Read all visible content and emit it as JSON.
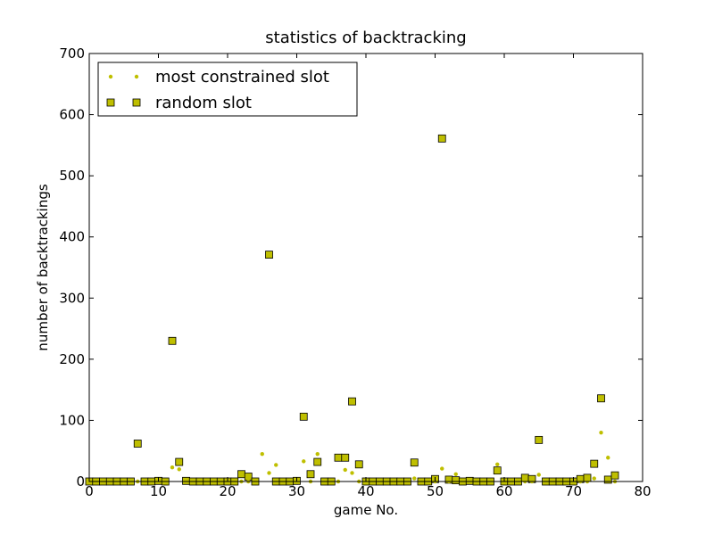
{
  "chart_data": {
    "type": "scatter",
    "title": "statistics of backtracking",
    "xlabel": "game No.",
    "ylabel": "number of backtrackings",
    "xlim": [
      0,
      80
    ],
    "ylim": [
      0,
      700
    ],
    "xticks": [
      "0",
      "10",
      "20",
      "30",
      "40",
      "50",
      "60",
      "70",
      "80"
    ],
    "yticks": [
      "0",
      "100",
      "200",
      "300",
      "400",
      "500",
      "600",
      "700"
    ],
    "grid": false,
    "legend_position": "top-left",
    "series": [
      {
        "name": "most constrained slot",
        "marker": "dot",
        "color": "#bfbf00",
        "points": [
          [
            0,
            0
          ],
          [
            1,
            0
          ],
          [
            2,
            0
          ],
          [
            3,
            0
          ],
          [
            4,
            0
          ],
          [
            5,
            0
          ],
          [
            6,
            0
          ],
          [
            7,
            0
          ],
          [
            8,
            0
          ],
          [
            9,
            0
          ],
          [
            10,
            0
          ],
          [
            11,
            0
          ],
          [
            12,
            23
          ],
          [
            13,
            20
          ],
          [
            14,
            0
          ],
          [
            15,
            0
          ],
          [
            16,
            0
          ],
          [
            17,
            0
          ],
          [
            18,
            0
          ],
          [
            19,
            0
          ],
          [
            20,
            0
          ],
          [
            21,
            0
          ],
          [
            22,
            0
          ],
          [
            23,
            0
          ],
          [
            24,
            0
          ],
          [
            25,
            45
          ],
          [
            26,
            14
          ],
          [
            27,
            27
          ],
          [
            28,
            0
          ],
          [
            29,
            0
          ],
          [
            30,
            0
          ],
          [
            31,
            33
          ],
          [
            32,
            0
          ],
          [
            33,
            45
          ],
          [
            34,
            0
          ],
          [
            35,
            0
          ],
          [
            36,
            0
          ],
          [
            37,
            19
          ],
          [
            38,
            14
          ],
          [
            39,
            0
          ],
          [
            40,
            0
          ],
          [
            41,
            0
          ],
          [
            42,
            0
          ],
          [
            43,
            0
          ],
          [
            44,
            0
          ],
          [
            45,
            0
          ],
          [
            46,
            0
          ],
          [
            47,
            5
          ],
          [
            48,
            0
          ],
          [
            49,
            0
          ],
          [
            50,
            0
          ],
          [
            51,
            21
          ],
          [
            52,
            0
          ],
          [
            53,
            12
          ],
          [
            54,
            0
          ],
          [
            55,
            0
          ],
          [
            56,
            0
          ],
          [
            57,
            0
          ],
          [
            58,
            0
          ],
          [
            59,
            28
          ],
          [
            60,
            0
          ],
          [
            61,
            0
          ],
          [
            62,
            0
          ],
          [
            63,
            0
          ],
          [
            64,
            0
          ],
          [
            65,
            11
          ],
          [
            66,
            0
          ],
          [
            67,
            0
          ],
          [
            68,
            0
          ],
          [
            69,
            0
          ],
          [
            70,
            0
          ],
          [
            71,
            0
          ],
          [
            72,
            0
          ],
          [
            73,
            5
          ],
          [
            74,
            80
          ],
          [
            75,
            39
          ],
          [
            76,
            0
          ]
        ]
      },
      {
        "name": "random slot",
        "marker": "square",
        "color": "#bfbf00",
        "points": [
          [
            0,
            0
          ],
          [
            1,
            0
          ],
          [
            2,
            0
          ],
          [
            3,
            0
          ],
          [
            4,
            0
          ],
          [
            5,
            0
          ],
          [
            6,
            0
          ],
          [
            7,
            62
          ],
          [
            8,
            0
          ],
          [
            9,
            0
          ],
          [
            10,
            1
          ],
          [
            11,
            0
          ],
          [
            12,
            230
          ],
          [
            13,
            32
          ],
          [
            14,
            1
          ],
          [
            15,
            0
          ],
          [
            16,
            0
          ],
          [
            17,
            0
          ],
          [
            18,
            0
          ],
          [
            19,
            0
          ],
          [
            20,
            0
          ],
          [
            21,
            0
          ],
          [
            22,
            12
          ],
          [
            23,
            8
          ],
          [
            24,
            0
          ],
          [
            26,
            371
          ],
          [
            27,
            0
          ],
          [
            28,
            0
          ],
          [
            29,
            0
          ],
          [
            30,
            1
          ],
          [
            31,
            106
          ],
          [
            32,
            12
          ],
          [
            33,
            32
          ],
          [
            34,
            0
          ],
          [
            35,
            0
          ],
          [
            36,
            39
          ],
          [
            37,
            39
          ],
          [
            38,
            131
          ],
          [
            39,
            28
          ],
          [
            40,
            0
          ],
          [
            41,
            0
          ],
          [
            42,
            0
          ],
          [
            43,
            0
          ],
          [
            44,
            0
          ],
          [
            45,
            0
          ],
          [
            46,
            0
          ],
          [
            47,
            31
          ],
          [
            48,
            0
          ],
          [
            49,
            0
          ],
          [
            50,
            4
          ],
          [
            51,
            561
          ],
          [
            52,
            3
          ],
          [
            53,
            2
          ],
          [
            54,
            0
          ],
          [
            55,
            1
          ],
          [
            56,
            0
          ],
          [
            57,
            0
          ],
          [
            58,
            0
          ],
          [
            59,
            18
          ],
          [
            60,
            0
          ],
          [
            61,
            0
          ],
          [
            62,
            0
          ],
          [
            63,
            6
          ],
          [
            64,
            4
          ],
          [
            65,
            68
          ],
          [
            66,
            0
          ],
          [
            67,
            0
          ],
          [
            68,
            0
          ],
          [
            69,
            0
          ],
          [
            70,
            0
          ],
          [
            71,
            4
          ],
          [
            72,
            6
          ],
          [
            73,
            29
          ],
          [
            74,
            136
          ],
          [
            75,
            3
          ],
          [
            76,
            10
          ]
        ]
      }
    ]
  }
}
